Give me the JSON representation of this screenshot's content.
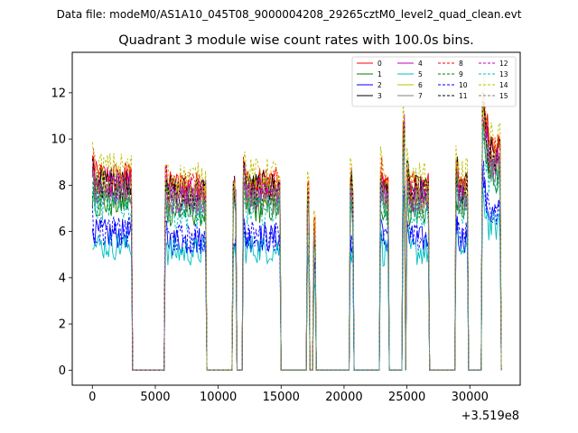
{
  "chart_data": {
    "type": "line",
    "suptitle": "Data file: modeM0/AS1A10_045T08_9000004208_29265cztM0_level2_quad_clean.evt",
    "title": "Quadrant 3 module wise count rates with 100.0s bins.",
    "xlabel": "",
    "ylabel": "",
    "x_offset_text": "+3.519e8",
    "xlim": [
      -1600,
      34000
    ],
    "ylim": [
      -0.65,
      13.75
    ],
    "xticks": [
      0,
      5000,
      10000,
      15000,
      20000,
      25000,
      30000
    ],
    "xtick_labels": [
      "0",
      "5000",
      "10000",
      "15000",
      "20000",
      "25000",
      "30000"
    ],
    "yticks": [
      0,
      2,
      4,
      6,
      8,
      10,
      12
    ],
    "ytick_labels": [
      "0",
      "2",
      "4",
      "6",
      "8",
      "10",
      "12"
    ],
    "legend_position": "top-right",
    "legend_columns": 4,
    "segments": [
      {
        "start": 0,
        "end": 3100,
        "level": 1.0
      },
      {
        "start": 5800,
        "end": 9000,
        "level": 0.95
      },
      {
        "start": 11200,
        "end": 11400,
        "level": 0.9
      },
      {
        "start": 12000,
        "end": 14900,
        "level": 0.97
      },
      {
        "start": 17100,
        "end": 17200,
        "level": 0.85
      },
      {
        "start": 17600,
        "end": 17700,
        "level": 0.7
      },
      {
        "start": 20500,
        "end": 20700,
        "level": 0.9
      },
      {
        "start": 22900,
        "end": 23500,
        "level": 0.95
      },
      {
        "start": 24700,
        "end": 24800,
        "level": 1.2
      },
      {
        "start": 25000,
        "end": 26700,
        "level": 0.95
      },
      {
        "start": 28900,
        "end": 29800,
        "level": 0.97
      },
      {
        "start": 31000,
        "end": 31200,
        "level": 1.3
      },
      {
        "start": 31300,
        "end": 32400,
        "level": 1.15
      }
    ],
    "series": [
      {
        "name": "0",
        "color": "#ff0000",
        "dash": "solid",
        "level": 8.4
      },
      {
        "name": "1",
        "color": "#008000",
        "dash": "solid",
        "level": 7.2
      },
      {
        "name": "2",
        "color": "#0000ff",
        "dash": "solid",
        "level": 5.9
      },
      {
        "name": "3",
        "color": "#000000",
        "dash": "solid",
        "level": 8.2
      },
      {
        "name": "4",
        "color": "#bf00bf",
        "dash": "solid",
        "level": 8.1
      },
      {
        "name": "5",
        "color": "#00bfbf",
        "dash": "solid",
        "level": 5.4
      },
      {
        "name": "6",
        "color": "#bfbf00",
        "dash": "solid",
        "level": 7.9
      },
      {
        "name": "7",
        "color": "#808080",
        "dash": "solid",
        "level": 7.6
      },
      {
        "name": "8",
        "color": "#ff0000",
        "dash": "dashed",
        "level": 8.3
      },
      {
        "name": "9",
        "color": "#008000",
        "dash": "dashed",
        "level": 7.5
      },
      {
        "name": "10",
        "color": "#0000ff",
        "dash": "dashed",
        "level": 6.0
      },
      {
        "name": "11",
        "color": "#000000",
        "dash": "dashed",
        "level": 8.0
      },
      {
        "name": "12",
        "color": "#bf00bf",
        "dash": "dashed",
        "level": 7.8
      },
      {
        "name": "13",
        "color": "#00bfbf",
        "dash": "dashed",
        "level": 7.1
      },
      {
        "name": "14",
        "color": "#bfbf00",
        "dash": "dashed",
        "level": 8.8
      },
      {
        "name": "15",
        "color": "#808080",
        "dash": "dashed",
        "level": 7.7
      }
    ]
  }
}
